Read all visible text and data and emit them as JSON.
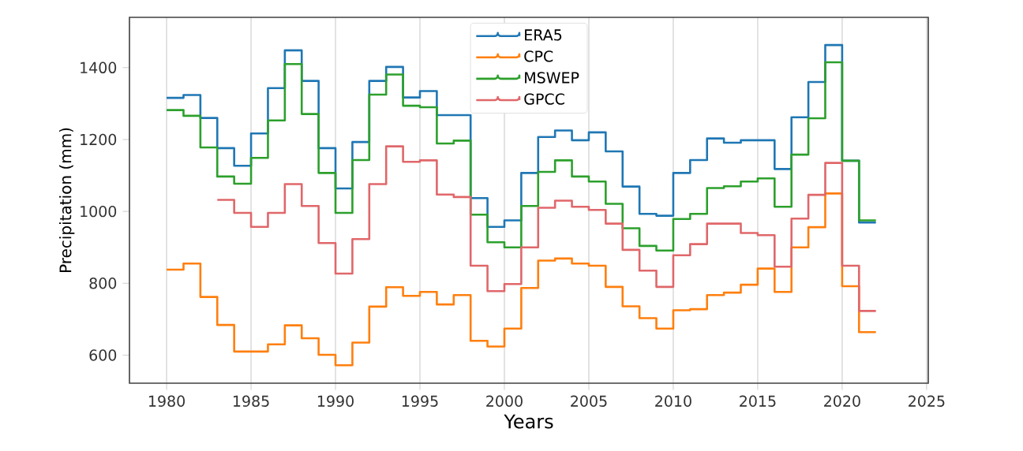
{
  "chart_data": {
    "type": "step",
    "xlabel": "Years",
    "ylabel": "Precipitation (mm)",
    "x": [
      1980,
      1981,
      1982,
      1983,
      1984,
      1985,
      1986,
      1987,
      1988,
      1989,
      1990,
      1991,
      1992,
      1993,
      1994,
      1995,
      1996,
      1997,
      1998,
      1999,
      2000,
      2001,
      2002,
      2003,
      2004,
      2005,
      2006,
      2007,
      2008,
      2009,
      2010,
      2011,
      2012,
      2013,
      2014,
      2015,
      2016,
      2017,
      2018,
      2019,
      2020,
      2021,
      2022
    ],
    "series": [
      {
        "name": "ERA5",
        "color": "#1f77b4",
        "values": [
          1316,
          1324,
          1260,
          1176,
          1127,
          1217,
          1343,
          1448,
          1363,
          1176,
          1064,
          1193,
          1363,
          1402,
          1317,
          1335,
          1268,
          1268,
          1037,
          957,
          975,
          1107,
          1207,
          1225,
          1198,
          1220,
          1167,
          1069,
          993,
          988,
          1107,
          1143,
          1203,
          1191,
          1198,
          1198,
          1118,
          1262,
          1360,
          1463,
          1141,
          969,
          969
        ]
      },
      {
        "name": "CPC",
        "color": "#ff7f0e",
        "values": [
          838,
          855,
          762,
          684,
          610,
          610,
          630,
          683,
          647,
          601,
          572,
          635,
          735,
          789,
          765,
          776,
          741,
          767,
          640,
          624,
          674,
          787,
          863,
          869,
          855,
          849,
          790,
          736,
          703,
          674,
          725,
          728,
          767,
          774,
          796,
          841,
          776,
          900,
          956,
          1050,
          792,
          664,
          664
        ]
      },
      {
        "name": "MSWEP",
        "color": "#2ca02c",
        "values": [
          1282,
          1266,
          1178,
          1097,
          1077,
          1149,
          1253,
          1410,
          1271,
          1107,
          996,
          1143,
          1325,
          1381,
          1294,
          1290,
          1189,
          1197,
          991,
          914,
          900,
          1015,
          1110,
          1142,
          1097,
          1083,
          1021,
          953,
          904,
          891,
          979,
          993,
          1065,
          1070,
          1083,
          1092,
          1013,
          1158,
          1259,
          1415,
          1141,
          975,
          975
        ]
      },
      {
        "name": "GPCC",
        "color": "#e0676a",
        "values": [
          null,
          null,
          null,
          1032,
          996,
          957,
          996,
          1076,
          1015,
          912,
          827,
          923,
          1076,
          1181,
          1138,
          1142,
          1047,
          1040,
          849,
          778,
          798,
          900,
          1010,
          1030,
          1013,
          1004,
          966,
          893,
          835,
          790,
          878,
          909,
          966,
          966,
          940,
          934,
          846,
          980,
          1046,
          1135,
          849,
          723,
          723
        ]
      }
    ],
    "xlim": [
      1977.8,
      2025.1
    ],
    "ylim": [
      522,
      1540
    ],
    "xticks": [
      1980,
      1985,
      1990,
      1995,
      2000,
      2005,
      2010,
      2015,
      2020,
      2025
    ],
    "yticks": [
      600,
      800,
      1000,
      1200,
      1400
    ],
    "grid": "x",
    "legend": "top"
  }
}
